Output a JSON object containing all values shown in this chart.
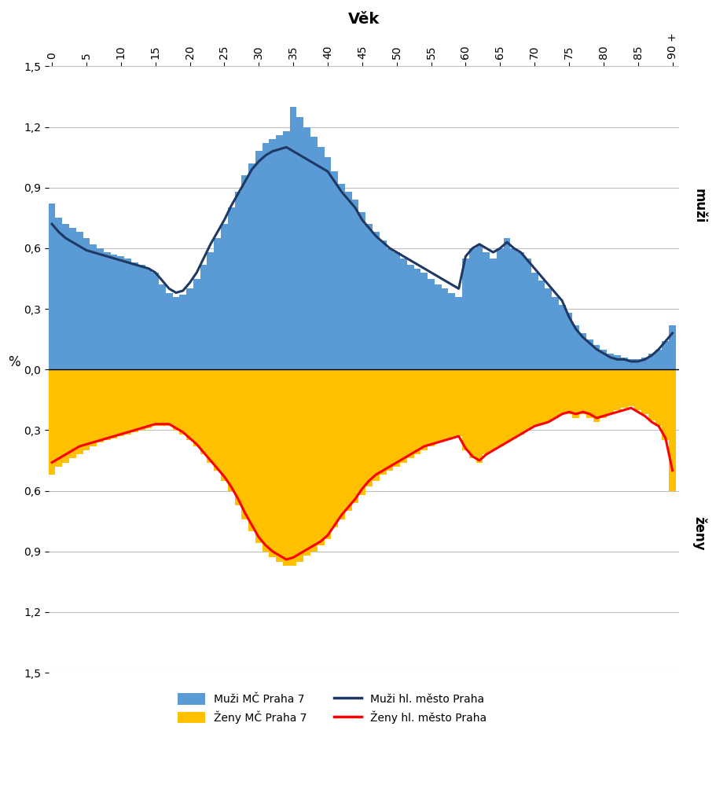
{
  "title": "Věk",
  "ylabel": "%",
  "bar_color_men": "#5B9BD5",
  "bar_color_women": "#FFC000",
  "line_color_men": "#1F3864",
  "line_color_women": "#FF0000",
  "ages": [
    0,
    1,
    2,
    3,
    4,
    5,
    6,
    7,
    8,
    9,
    10,
    11,
    12,
    13,
    14,
    15,
    16,
    17,
    18,
    19,
    20,
    21,
    22,
    23,
    24,
    25,
    26,
    27,
    28,
    29,
    30,
    31,
    32,
    33,
    34,
    35,
    36,
    37,
    38,
    39,
    40,
    41,
    42,
    43,
    44,
    45,
    46,
    47,
    48,
    49,
    50,
    51,
    52,
    53,
    54,
    55,
    56,
    57,
    58,
    59,
    60,
    61,
    62,
    63,
    64,
    65,
    66,
    67,
    68,
    69,
    70,
    71,
    72,
    73,
    74,
    75,
    76,
    77,
    78,
    79,
    80,
    81,
    82,
    83,
    84,
    85,
    86,
    87,
    88,
    89,
    90
  ],
  "men_bar": [
    0.82,
    0.75,
    0.72,
    0.7,
    0.68,
    0.65,
    0.62,
    0.6,
    0.58,
    0.57,
    0.56,
    0.55,
    0.53,
    0.52,
    0.5,
    0.48,
    0.42,
    0.38,
    0.36,
    0.37,
    0.4,
    0.45,
    0.52,
    0.58,
    0.65,
    0.72,
    0.8,
    0.88,
    0.96,
    1.02,
    1.08,
    1.12,
    1.14,
    1.16,
    1.18,
    1.3,
    1.25,
    1.2,
    1.15,
    1.1,
    1.05,
    0.98,
    0.92,
    0.88,
    0.84,
    0.78,
    0.72,
    0.68,
    0.64,
    0.6,
    0.58,
    0.55,
    0.52,
    0.5,
    0.48,
    0.45,
    0.42,
    0.4,
    0.38,
    0.36,
    0.55,
    0.6,
    0.62,
    0.58,
    0.55,
    0.6,
    0.65,
    0.6,
    0.58,
    0.55,
    0.48,
    0.44,
    0.4,
    0.36,
    0.32,
    0.28,
    0.22,
    0.18,
    0.15,
    0.12,
    0.1,
    0.08,
    0.07,
    0.06,
    0.05,
    0.05,
    0.06,
    0.08,
    0.1,
    0.14,
    0.22
  ],
  "women_bar": [
    -0.52,
    -0.48,
    -0.46,
    -0.44,
    -0.42,
    -0.4,
    -0.38,
    -0.36,
    -0.35,
    -0.34,
    -0.33,
    -0.32,
    -0.31,
    -0.3,
    -0.29,
    -0.28,
    -0.28,
    -0.28,
    -0.3,
    -0.32,
    -0.35,
    -0.38,
    -0.42,
    -0.46,
    -0.5,
    -0.55,
    -0.6,
    -0.67,
    -0.74,
    -0.8,
    -0.86,
    -0.9,
    -0.93,
    -0.95,
    -0.97,
    -0.97,
    -0.95,
    -0.92,
    -0.9,
    -0.87,
    -0.84,
    -0.78,
    -0.74,
    -0.7,
    -0.66,
    -0.62,
    -0.58,
    -0.55,
    -0.52,
    -0.5,
    -0.48,
    -0.46,
    -0.44,
    -0.42,
    -0.4,
    -0.38,
    -0.36,
    -0.35,
    -0.34,
    -0.33,
    -0.4,
    -0.44,
    -0.46,
    -0.42,
    -0.4,
    -0.38,
    -0.36,
    -0.34,
    -0.32,
    -0.3,
    -0.28,
    -0.27,
    -0.26,
    -0.24,
    -0.22,
    -0.22,
    -0.24,
    -0.22,
    -0.24,
    -0.26,
    -0.24,
    -0.22,
    -0.2,
    -0.19,
    -0.18,
    -0.2,
    -0.22,
    -0.25,
    -0.28,
    -0.35,
    -0.6
  ],
  "men_line": [
    0.72,
    0.68,
    0.65,
    0.63,
    0.61,
    0.59,
    0.58,
    0.57,
    0.56,
    0.55,
    0.54,
    0.53,
    0.52,
    0.51,
    0.5,
    0.48,
    0.44,
    0.4,
    0.38,
    0.39,
    0.43,
    0.48,
    0.55,
    0.62,
    0.68,
    0.74,
    0.81,
    0.87,
    0.93,
    0.99,
    1.03,
    1.06,
    1.08,
    1.09,
    1.1,
    1.08,
    1.06,
    1.04,
    1.02,
    1.0,
    0.98,
    0.93,
    0.88,
    0.84,
    0.8,
    0.74,
    0.7,
    0.66,
    0.63,
    0.6,
    0.58,
    0.56,
    0.54,
    0.52,
    0.5,
    0.48,
    0.46,
    0.44,
    0.42,
    0.4,
    0.56,
    0.6,
    0.62,
    0.6,
    0.58,
    0.6,
    0.63,
    0.6,
    0.58,
    0.54,
    0.5,
    0.46,
    0.42,
    0.38,
    0.34,
    0.26,
    0.2,
    0.16,
    0.13,
    0.1,
    0.08,
    0.06,
    0.05,
    0.05,
    0.04,
    0.04,
    0.05,
    0.07,
    0.1,
    0.14,
    0.18
  ],
  "women_line": [
    -0.46,
    -0.44,
    -0.42,
    -0.4,
    -0.38,
    -0.37,
    -0.36,
    -0.35,
    -0.34,
    -0.33,
    -0.32,
    -0.31,
    -0.3,
    -0.29,
    -0.28,
    -0.27,
    -0.27,
    -0.27,
    -0.29,
    -0.31,
    -0.34,
    -0.37,
    -0.41,
    -0.45,
    -0.49,
    -0.53,
    -0.58,
    -0.64,
    -0.71,
    -0.77,
    -0.83,
    -0.87,
    -0.9,
    -0.92,
    -0.94,
    -0.93,
    -0.91,
    -0.89,
    -0.87,
    -0.85,
    -0.82,
    -0.77,
    -0.72,
    -0.68,
    -0.64,
    -0.59,
    -0.55,
    -0.52,
    -0.5,
    -0.48,
    -0.46,
    -0.44,
    -0.42,
    -0.4,
    -0.38,
    -0.37,
    -0.36,
    -0.35,
    -0.34,
    -0.33,
    -0.39,
    -0.43,
    -0.45,
    -0.42,
    -0.4,
    -0.38,
    -0.36,
    -0.34,
    -0.32,
    -0.3,
    -0.28,
    -0.27,
    -0.26,
    -0.24,
    -0.22,
    -0.21,
    -0.22,
    -0.21,
    -0.22,
    -0.24,
    -0.23,
    -0.22,
    -0.21,
    -0.2,
    -0.19,
    -0.21,
    -0.23,
    -0.26,
    -0.28,
    -0.34,
    -0.5
  ],
  "yticks": [
    1.5,
    1.2,
    0.9,
    0.6,
    0.3,
    0.0,
    -0.3,
    -0.6,
    -0.9,
    -1.2,
    -1.5
  ],
  "yticklabels": [
    "1,5",
    "1,2",
    "0,9",
    "0,6",
    "0,3",
    "0,0",
    "0,3",
    "0,6",
    "0,9",
    "1,2",
    "1,5"
  ],
  "xtick_positions": [
    0,
    5,
    10,
    15,
    20,
    25,
    30,
    35,
    40,
    45,
    50,
    55,
    60,
    65,
    70,
    75,
    80,
    85,
    90
  ],
  "xtick_labels": [
    "0",
    "5",
    "10",
    "15",
    "20",
    "25",
    "30",
    "35",
    "40",
    "45",
    "50",
    "55",
    "60",
    "65",
    "70",
    "75",
    "80",
    "85",
    "90 +"
  ],
  "muzi_label": "muži",
  "zeny_label": "ženy",
  "legend_labels": [
    "Muži MČ Praha 7",
    "Ženy MČ Praha 7",
    "Muži hl. město Praha",
    "Ženy hl. město Praha"
  ],
  "background_color": "#FFFFFF",
  "grid_color": "#C0C0C0"
}
